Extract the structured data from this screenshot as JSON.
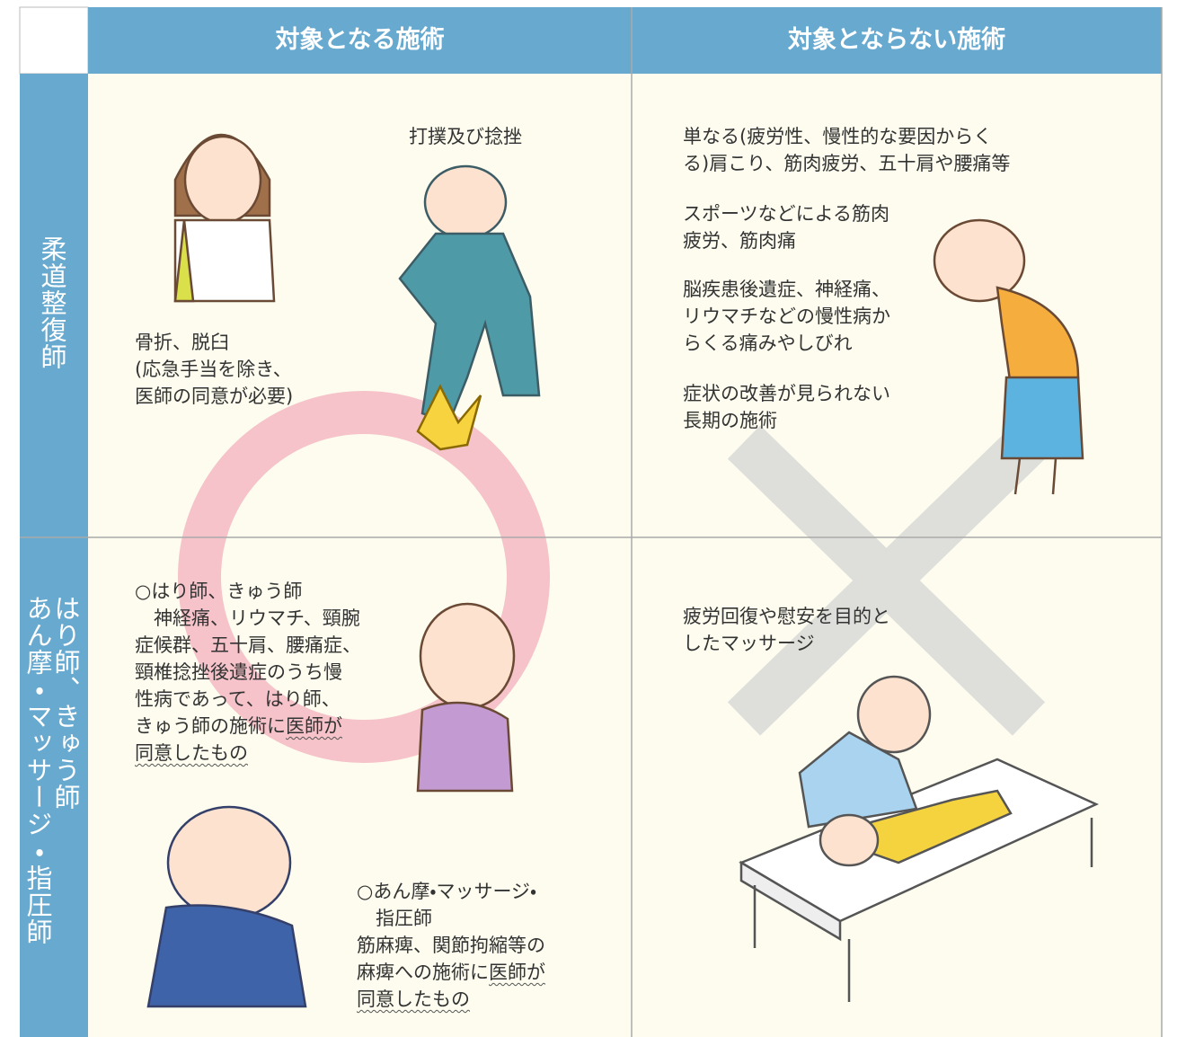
{
  "header": {
    "columns": [
      "対象となる施術",
      "対象とならない施術"
    ]
  },
  "rows": [
    {
      "label": [
        "柔道整復師"
      ],
      "covered": [
        {
          "lines": [
            "打撲及び捻挫"
          ]
        },
        {
          "lines": [
            "骨折、脱臼",
            "(応急手当を除き、",
            "医師の同意が必要)"
          ]
        }
      ],
      "not_covered": [
        {
          "lines": [
            "単なる(疲労性、慢性的な要因からく",
            "る)肩こり、筋肉疲労、五十肩や腰痛等"
          ]
        },
        {
          "lines": [
            "スポーツなどによる筋肉",
            "疲労、筋肉痛"
          ]
        },
        {
          "lines": [
            "脳疾患後遺症、神経痛、",
            "リウマチなどの慢性病か",
            "らくる痛みやしびれ"
          ]
        },
        {
          "lines": [
            "症状の改善が見られない",
            "長期の施術"
          ]
        }
      ]
    },
    {
      "label": [
        "はり師、きゅう師",
        "あん摩・マッサージ・指圧師"
      ],
      "covered": [
        {
          "lines": [
            "○はり師、きゅう師",
            "　神経痛、リウマチ、頸腕",
            "症候群、五十肩、腰痛症、",
            "頸椎捻挫後遺症のうち慢",
            "性病であって、はり師、",
            [
              "きゅう師の施術に",
              "医師が"
            ],
            [
              null,
              "同意したもの"
            ]
          ]
        },
        {
          "lines": [
            "○あん摩・マッサージ・",
            "　指圧師",
            "筋麻痺、関節拘縮等の",
            [
              "麻痺への施術に",
              "医師が"
            ],
            [
              null,
              "同意したもの"
            ]
          ]
        }
      ],
      "not_covered": [
        {
          "lines": [
            "疲労回復や慰安を目的と",
            "したマッサージ"
          ]
        }
      ]
    }
  ]
}
